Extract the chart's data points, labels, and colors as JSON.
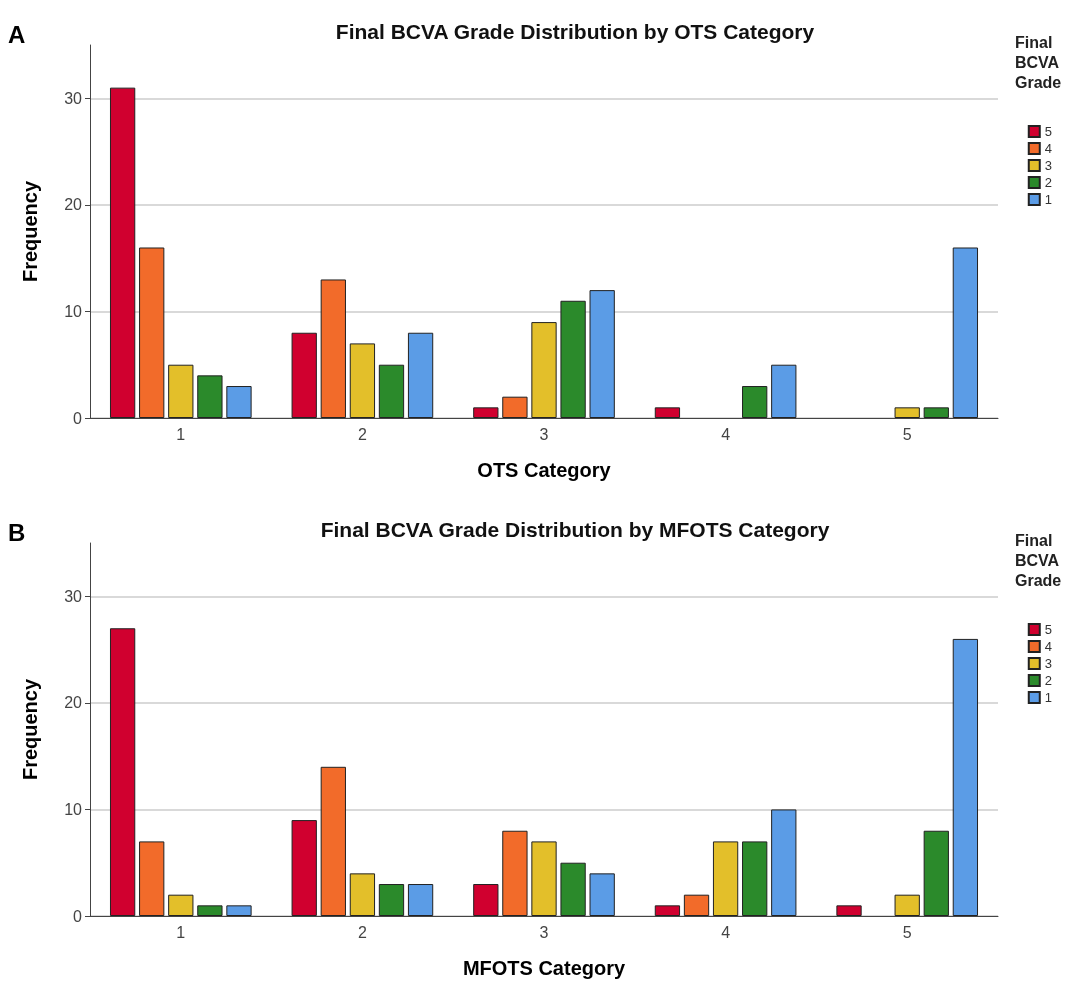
{
  "chart_data": [
    {
      "type": "bar",
      "title": "Final BCVA Grade Distribution by OTS Category",
      "xlabel": "OTS Category",
      "ylabel": "Frequency",
      "legend_title": "Final BCVA Grade",
      "annotations": [
        "A"
      ],
      "categories": [
        "1",
        "2",
        "3",
        "4",
        "5"
      ],
      "series": [
        {
          "name": "5",
          "color": "#d0002f",
          "values": [
            31,
            8,
            1,
            1,
            null
          ]
        },
        {
          "name": "4",
          "color": "#f26b2a",
          "values": [
            16,
            13,
            2,
            null,
            null
          ]
        },
        {
          "name": "3",
          "color": "#e3bf2a",
          "values": [
            5,
            7,
            9,
            null,
            1
          ]
        },
        {
          "name": "2",
          "color": "#2b8a2b",
          "values": [
            4,
            5,
            11,
            3,
            1
          ]
        },
        {
          "name": "1",
          "color": "#5b9ce6",
          "values": [
            3,
            8,
            12,
            5,
            16
          ]
        }
      ],
      "ylim": [
        0,
        35
      ],
      "yticks": [
        0,
        10,
        20,
        30
      ],
      "grid": "y",
      "legend": "right"
    },
    {
      "type": "bar",
      "title": "Final BCVA Grade Distribution by MFOTS Category",
      "xlabel": "MFOTS Category",
      "ylabel": "Frequency",
      "legend_title": "Final BCVA Grade",
      "annotations": [
        "B"
      ],
      "categories": [
        "1",
        "2",
        "3",
        "4",
        "5"
      ],
      "series": [
        {
          "name": "5",
          "color": "#d0002f",
          "values": [
            27,
            9,
            3,
            1,
            1
          ]
        },
        {
          "name": "4",
          "color": "#f26b2a",
          "values": [
            7,
            14,
            8,
            2,
            null
          ]
        },
        {
          "name": "3",
          "color": "#e3bf2a",
          "values": [
            2,
            4,
            7,
            7,
            2
          ]
        },
        {
          "name": "2",
          "color": "#2b8a2b",
          "values": [
            1,
            3,
            5,
            7,
            8
          ]
        },
        {
          "name": "1",
          "color": "#5b9ce6",
          "values": [
            1,
            3,
            4,
            10,
            26
          ]
        }
      ],
      "ylim": [
        0,
        35
      ],
      "yticks": [
        0,
        10,
        20,
        30
      ],
      "grid": "y",
      "legend": "right"
    }
  ]
}
